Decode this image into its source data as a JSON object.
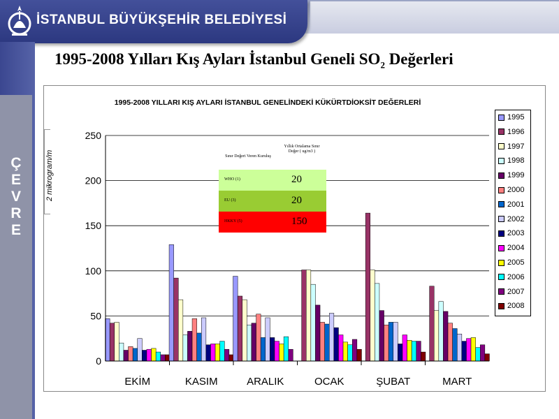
{
  "header": {
    "org_name": "İSTANBUL BÜYÜKŞEHİR BELEDİYESİ"
  },
  "sidebar": {
    "letters": [
      "Ç",
      "E",
      "V",
      "R",
      "E"
    ]
  },
  "slide": {
    "title_main": "1995-2008 Yılları Kış Ayları İstanbul Geneli  SO",
    "title_sub": "2",
    "title_end": "  Değerleri"
  },
  "reference_table": {
    "col1_header": "Sınır Değeri Veren Kuruluş",
    "col2_header": "Yıllık Ortalama Sınır Değer ( ug/m3 )",
    "rows": [
      {
        "name": "WHO (1)",
        "value": "20",
        "color": "#ccff99"
      },
      {
        "name": "EU (3)",
        "value": "20",
        "color": "#99cc33"
      },
      {
        "name": "HKKY (5)",
        "value": "150",
        "color": "#ff0000"
      }
    ]
  },
  "chart_data": {
    "type": "bar",
    "title": "1995-2008 YILLARI KIŞ AYLARI İSTANBUL GENELİNDEKİ  KÜKÜRTDİOKSİT DEĞERLERİ",
    "ylabel_fragment": "2 mikrogram/m",
    "categories": [
      "EKİM",
      "KASIM",
      "ARALIK",
      "OCAK",
      "ŞUBAT",
      "MART"
    ],
    "ylim": [
      0,
      250
    ],
    "yticks": [
      0,
      50,
      100,
      150,
      200,
      250
    ],
    "grid": true,
    "legend_position": "right",
    "series": [
      {
        "name": "1995",
        "color": "#9999ff",
        "values": [
          47,
          129,
          94,
          0,
          0,
          0
        ]
      },
      {
        "name": "1996",
        "color": "#993366",
        "values": [
          42,
          92,
          72,
          101,
          164,
          83
        ]
      },
      {
        "name": "1997",
        "color": "#ffffcc",
        "values": [
          43,
          68,
          68,
          101,
          101,
          56
        ]
      },
      {
        "name": "1998",
        "color": "#ccffff",
        "values": [
          20,
          29,
          40,
          85,
          86,
          66
        ]
      },
      {
        "name": "1999",
        "color": "#660066",
        "values": [
          12,
          33,
          42,
          62,
          56,
          55
        ]
      },
      {
        "name": "2000",
        "color": "#ff8080",
        "values": [
          16,
          47,
          52,
          43,
          40,
          42
        ]
      },
      {
        "name": "2001",
        "color": "#0066cc",
        "values": [
          14,
          31,
          26,
          41,
          43,
          36
        ]
      },
      {
        "name": "2002",
        "color": "#ccccff",
        "values": [
          25,
          48,
          48,
          53,
          43,
          30
        ]
      },
      {
        "name": "2003",
        "color": "#000080",
        "values": [
          12,
          18,
          26,
          37,
          19,
          22
        ]
      },
      {
        "name": "2004",
        "color": "#ff00ff",
        "values": [
          13,
          19,
          22,
          29,
          29,
          25
        ]
      },
      {
        "name": "2005",
        "color": "#ffff00",
        "values": [
          14,
          19,
          19,
          21,
          23,
          26
        ]
      },
      {
        "name": "2006",
        "color": "#00ffff",
        "values": [
          10,
          22,
          27,
          18,
          22,
          15
        ]
      },
      {
        "name": "2007",
        "color": "#800080",
        "values": [
          7,
          13,
          13,
          24,
          22,
          18
        ]
      },
      {
        "name": "2008",
        "color": "#800000",
        "values": [
          7,
          7,
          0,
          13,
          10,
          8
        ]
      }
    ]
  }
}
